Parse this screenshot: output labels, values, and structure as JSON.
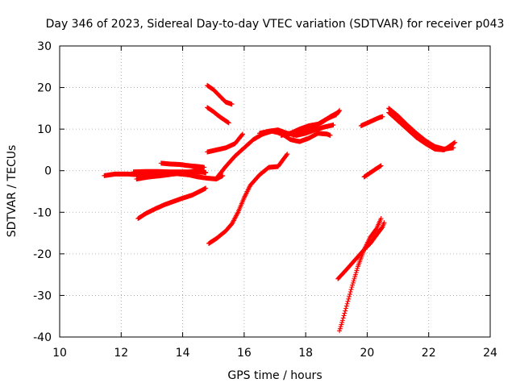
{
  "chart_data": {
    "type": "scatter",
    "title": "Day 346 of 2023, Sidereal Day-to-day VTEC variation (SDTVAR) for receiver p043",
    "xlabel": "GPS time / hours",
    "ylabel": "SDTVAR / TECUs",
    "xlim": [
      10,
      24
    ],
    "ylim": [
      -40,
      30
    ],
    "xticks": [
      "10",
      "12",
      "14",
      "16",
      "18",
      "20",
      "22",
      "24"
    ],
    "yticks": [
      "-40",
      "-30",
      "-20",
      "-10",
      "0",
      "10",
      "20",
      "30"
    ],
    "grid": true,
    "marker": "plus",
    "color": "#ff0000",
    "series": [
      {
        "name": "s1",
        "points": [
          [
            11.45,
            -1.2
          ],
          [
            11.8,
            -0.8
          ],
          [
            12.2,
            -0.8
          ],
          [
            12.6,
            -1.0
          ],
          [
            13.0,
            -0.7
          ],
          [
            13.4,
            -0.8
          ],
          [
            13.8,
            -0.7
          ],
          [
            14.2,
            -1.0
          ],
          [
            14.5,
            -1.5
          ],
          [
            14.8,
            -1.8
          ],
          [
            15.1,
            -2.0
          ],
          [
            15.3,
            -1.2
          ]
        ]
      },
      {
        "name": "s2",
        "points": [
          [
            12.5,
            -2.0
          ],
          [
            12.9,
            -1.5
          ],
          [
            13.3,
            -1.2
          ],
          [
            13.7,
            -0.8
          ],
          [
            14.1,
            -0.5
          ],
          [
            14.4,
            0.0
          ],
          [
            14.6,
            -0.2
          ],
          [
            14.75,
            -0.5
          ]
        ]
      },
      {
        "name": "s3",
        "points": [
          [
            12.4,
            -0.3
          ],
          [
            12.8,
            -0.2
          ],
          [
            13.2,
            -0.2
          ],
          [
            13.6,
            -0.3
          ],
          [
            14.0,
            -0.3
          ],
          [
            14.4,
            -0.3
          ],
          [
            14.75,
            -0.4
          ]
        ]
      },
      {
        "name": "s4",
        "points": [
          [
            13.3,
            1.8
          ],
          [
            13.6,
            1.6
          ],
          [
            13.9,
            1.5
          ],
          [
            14.2,
            1.2
          ],
          [
            14.5,
            1.0
          ],
          [
            14.7,
            0.8
          ]
        ]
      },
      {
        "name": "s5",
        "points": [
          [
            12.55,
            -11.5
          ],
          [
            12.8,
            -10.3
          ],
          [
            13.1,
            -9.2
          ],
          [
            13.4,
            -8.2
          ],
          [
            13.7,
            -7.4
          ],
          [
            14.0,
            -6.6
          ],
          [
            14.3,
            -5.9
          ],
          [
            14.6,
            -4.8
          ],
          [
            14.75,
            -4.2
          ]
        ]
      },
      {
        "name": "s6",
        "points": [
          [
            14.85,
            -17.5
          ],
          [
            15.1,
            -16.3
          ],
          [
            15.4,
            -14.5
          ],
          [
            15.6,
            -12.8
          ],
          [
            15.8,
            -10.0
          ],
          [
            16.0,
            -6.5
          ],
          [
            16.2,
            -3.5
          ],
          [
            16.5,
            -1.0
          ],
          [
            16.8,
            0.8
          ],
          [
            17.1,
            1.0
          ],
          [
            17.4,
            4.0
          ]
        ]
      },
      {
        "name": "s7",
        "points": [
          [
            14.8,
            4.5
          ],
          [
            15.1,
            5.0
          ],
          [
            15.4,
            5.5
          ],
          [
            15.7,
            6.5
          ],
          [
            15.95,
            8.8
          ]
        ]
      },
      {
        "name": "s8",
        "points": [
          [
            15.1,
            -1.8
          ],
          [
            15.4,
            1.0
          ],
          [
            15.7,
            3.5
          ],
          [
            16.0,
            5.5
          ],
          [
            16.3,
            7.5
          ],
          [
            16.6,
            8.8
          ],
          [
            16.9,
            9.5
          ],
          [
            17.2,
            9.0
          ],
          [
            17.5,
            7.5
          ],
          [
            17.8,
            7.0
          ],
          [
            18.1,
            7.8
          ],
          [
            18.4,
            9.0
          ],
          [
            18.7,
            8.8
          ],
          [
            18.8,
            8.5
          ]
        ]
      },
      {
        "name": "s9",
        "points": [
          [
            16.5,
            9.0
          ],
          [
            16.8,
            9.5
          ],
          [
            17.1,
            9.8
          ],
          [
            17.4,
            9.0
          ],
          [
            17.7,
            8.5
          ],
          [
            18.0,
            9.0
          ],
          [
            18.3,
            9.8
          ],
          [
            18.6,
            10.5
          ],
          [
            18.9,
            11.0
          ]
        ]
      },
      {
        "name": "s10",
        "points": [
          [
            17.6,
            8.5
          ],
          [
            17.9,
            9.8
          ],
          [
            18.2,
            10.5
          ],
          [
            18.5,
            11.5
          ],
          [
            18.8,
            13.0
          ],
          [
            19.05,
            14.0
          ]
        ]
      },
      {
        "name": "s11",
        "points": [
          [
            17.2,
            8.5
          ],
          [
            17.5,
            9.0
          ],
          [
            17.8,
            10.0
          ],
          [
            18.1,
            10.8
          ],
          [
            18.4,
            11.2
          ],
          [
            18.7,
            12.5
          ],
          [
            19.0,
            13.5
          ],
          [
            19.1,
            14.5
          ]
        ]
      },
      {
        "name": "s12",
        "points": [
          [
            14.8,
            20.5
          ],
          [
            15.0,
            19.5
          ],
          [
            15.2,
            18.0
          ],
          [
            15.4,
            16.5
          ],
          [
            15.6,
            16.0
          ]
        ]
      },
      {
        "name": "s13",
        "points": [
          [
            14.8,
            15.2
          ],
          [
            15.0,
            14.2
          ],
          [
            15.2,
            13.0
          ],
          [
            15.4,
            12.0
          ],
          [
            15.5,
            11.5
          ]
        ]
      },
      {
        "name": "s14",
        "points": [
          [
            19.8,
            10.8
          ],
          [
            20.1,
            11.8
          ],
          [
            20.4,
            12.8
          ],
          [
            20.5,
            13.0
          ]
        ]
      },
      {
        "name": "s15",
        "points": [
          [
            20.7,
            15.0
          ],
          [
            21.0,
            13.2
          ],
          [
            21.3,
            11.0
          ],
          [
            21.6,
            9.0
          ],
          [
            21.9,
            7.2
          ],
          [
            22.2,
            5.8
          ],
          [
            22.5,
            5.2
          ],
          [
            22.8,
            5.5
          ]
        ]
      },
      {
        "name": "s16",
        "points": [
          [
            20.7,
            14.0
          ],
          [
            21.0,
            12.0
          ],
          [
            21.3,
            10.0
          ],
          [
            21.6,
            8.0
          ],
          [
            21.9,
            6.5
          ],
          [
            22.2,
            5.2
          ],
          [
            22.5,
            5.0
          ],
          [
            22.7,
            6.0
          ],
          [
            22.85,
            6.8
          ]
        ]
      },
      {
        "name": "s17",
        "points": [
          [
            19.9,
            -1.5
          ],
          [
            20.1,
            -0.5
          ],
          [
            20.3,
            0.5
          ],
          [
            20.45,
            1.2
          ]
        ]
      },
      {
        "name": "s18",
        "points": [
          [
            19.05,
            -26.0
          ],
          [
            19.3,
            -24.0
          ],
          [
            19.6,
            -21.5
          ],
          [
            19.9,
            -19.0
          ],
          [
            20.1,
            -17.5
          ],
          [
            20.3,
            -15.5
          ],
          [
            20.5,
            -13.5
          ],
          [
            20.55,
            -12.5
          ]
        ]
      },
      {
        "name": "s19",
        "points": [
          [
            19.1,
            -38.5
          ],
          [
            19.2,
            -36.0
          ],
          [
            19.35,
            -32.0
          ],
          [
            19.5,
            -28.0
          ],
          [
            19.7,
            -23.0
          ],
          [
            19.9,
            -19.0
          ],
          [
            20.1,
            -16.0
          ],
          [
            20.3,
            -14.0
          ],
          [
            20.45,
            -11.5
          ]
        ]
      }
    ]
  }
}
